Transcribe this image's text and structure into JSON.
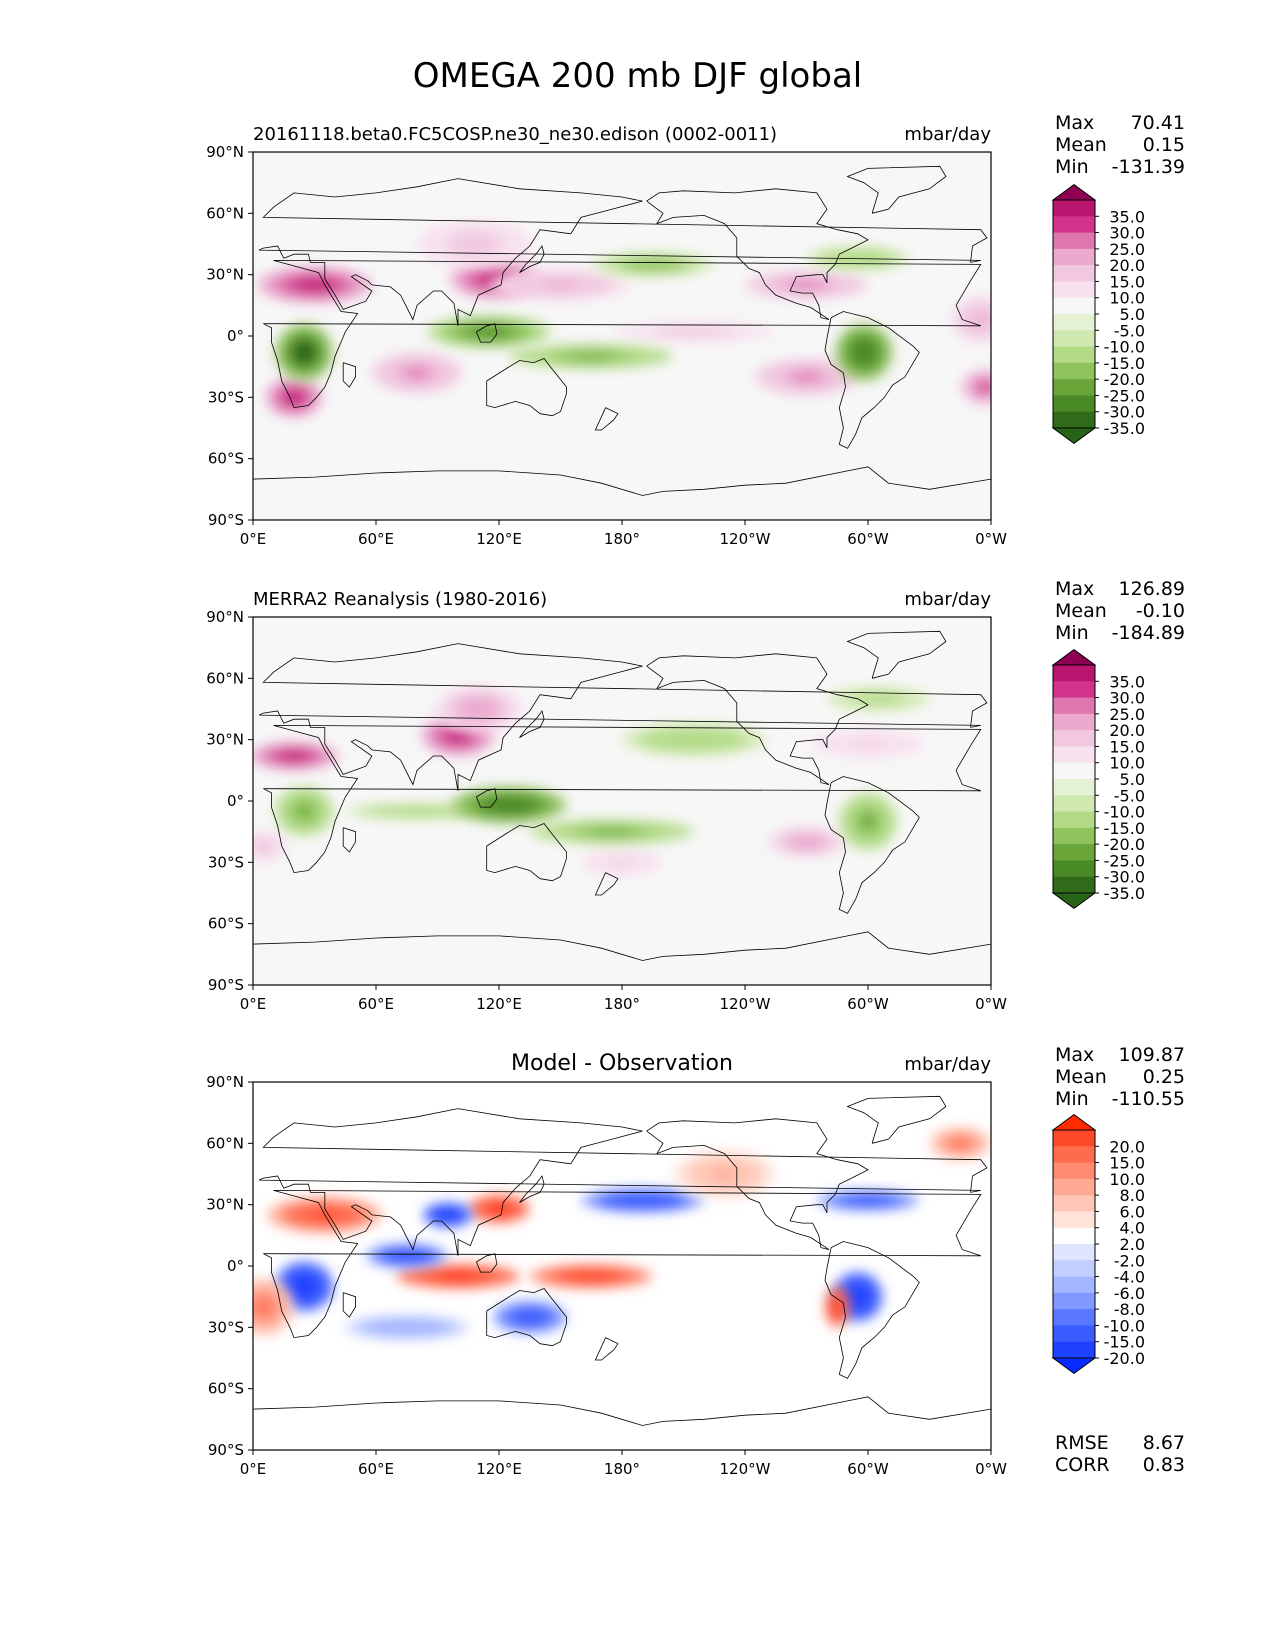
{
  "title": "OMEGA 200 mb DJF global",
  "axes": {
    "lat_labels": [
      "90°N",
      "60°N",
      "30°N",
      "0°",
      "30°S",
      "60°S",
      "90°S"
    ],
    "lon_labels": [
      "0°E",
      "60°E",
      "120°E",
      "180°",
      "120°W",
      "60°W",
      "0°W"
    ]
  },
  "panels": [
    {
      "title": "20161118.beta0.FC5COSP.ne30_ne30.edison (0002-0011)",
      "units": "mbar/day",
      "stats": [
        {
          "label": "Max",
          "value": "70.41"
        },
        {
          "label": "Mean",
          "value": "0.15"
        },
        {
          "label": "Min",
          "value": "-131.39"
        }
      ],
      "colorbar": {
        "labels": [
          "35.0",
          "30.0",
          "25.0",
          "20.0",
          "15.0",
          "10.0",
          "5.0",
          "-5.0",
          "-10.0",
          "-15.0",
          "-20.0",
          "-25.0",
          "-30.0",
          "-35.0"
        ],
        "colors": [
          "#8e0152",
          "#b8156f",
          "#d1338c",
          "#de77ae",
          "#eba9cf",
          "#f1c8e0",
          "#f7e1ee",
          "#f7f7f7",
          "#e6f2d4",
          "#d0e9b0",
          "#b3da87",
          "#8fc35c",
          "#6aa53a",
          "#4a8a26",
          "#2f6b18",
          "#276419"
        ],
        "top_color": "#8e0152",
        "bottom_color": "#276419"
      }
    },
    {
      "title": "MERRA2 Reanalysis (1980-2016)",
      "units": "mbar/day",
      "stats": [
        {
          "label": "Max",
          "value": "126.89"
        },
        {
          "label": "Mean",
          "value": "-0.10"
        },
        {
          "label": "Min",
          "value": "-184.89"
        }
      ],
      "colorbar": {
        "labels": [
          "35.0",
          "30.0",
          "25.0",
          "20.0",
          "15.0",
          "10.0",
          "5.0",
          "-5.0",
          "-10.0",
          "-15.0",
          "-20.0",
          "-25.0",
          "-30.0",
          "-35.0"
        ],
        "colors": [
          "#8e0152",
          "#b8156f",
          "#d1338c",
          "#de77ae",
          "#eba9cf",
          "#f1c8e0",
          "#f7e1ee",
          "#f7f7f7",
          "#e6f2d4",
          "#d0e9b0",
          "#b3da87",
          "#8fc35c",
          "#6aa53a",
          "#4a8a26",
          "#2f6b18",
          "#276419"
        ],
        "top_color": "#8e0152",
        "bottom_color": "#276419"
      }
    },
    {
      "title": "Model - Observation",
      "units": "mbar/day",
      "stats": [
        {
          "label": "Max",
          "value": "109.87"
        },
        {
          "label": "Mean",
          "value": "0.25"
        },
        {
          "label": "Min",
          "value": "-110.55"
        }
      ],
      "extra_stats": [
        {
          "label": "RMSE",
          "value": "8.67"
        },
        {
          "label": "CORR",
          "value": "0.83"
        }
      ],
      "colorbar": {
        "labels": [
          "20.0",
          "15.0",
          "10.0",
          "8.0",
          "6.0",
          "4.0",
          "2.0",
          "-2.0",
          "-4.0",
          "-6.0",
          "-8.0",
          "-10.0",
          "-15.0",
          "-20.0"
        ],
        "colors": [
          "#ff2a00",
          "#ff4a2a",
          "#ff6b4f",
          "#ff8a70",
          "#ffa892",
          "#ffc6b6",
          "#ffe3da",
          "#ffffff",
          "#dde5ff",
          "#c2ceff",
          "#a4b6ff",
          "#8098ff",
          "#5a78ff",
          "#3a5cff",
          "#1e40ff",
          "#0a2bff"
        ],
        "top_color": "#ff2a00",
        "bottom_color": "#0a2bff"
      }
    }
  ],
  "chart_data": [
    {
      "type": "heatmap",
      "title": "20161118.beta0.FC5COSP.ne30_ne30.edison (0002-0011)",
      "units": "mbar/day",
      "xlim": [
        0,
        360
      ],
      "ylim": [
        -90,
        90
      ],
      "x_ticks": [
        "0°E",
        "60°E",
        "120°E",
        "180°",
        "120°W",
        "60°W",
        "0°W"
      ],
      "y_ticks": [
        "90°N",
        "60°N",
        "30°N",
        "0°",
        "30°S",
        "60°S",
        "90°S"
      ],
      "stats": {
        "max": 70.41,
        "mean": 0.15,
        "min": -131.39
      },
      "color_levels": [
        -35,
        -30,
        -25,
        -20,
        -15,
        -10,
        -5,
        5,
        10,
        15,
        20,
        25,
        30,
        35
      ],
      "features": [
        {
          "lon": 30,
          "lat": 25,
          "rx": 28,
          "ry": 9,
          "value": 32
        },
        {
          "lon": 118,
          "lat": 28,
          "rx": 22,
          "ry": 10,
          "value": 34
        },
        {
          "lon": 108,
          "lat": 45,
          "rx": 28,
          "ry": 12,
          "value": 12
        },
        {
          "lon": 150,
          "lat": 25,
          "rx": 35,
          "ry": 8,
          "value": 16
        },
        {
          "lon": 270,
          "lat": 25,
          "rx": 30,
          "ry": 7,
          "value": 22
        },
        {
          "lon": 20,
          "lat": -30,
          "rx": 14,
          "ry": 10,
          "value": 30
        },
        {
          "lon": 80,
          "lat": -18,
          "rx": 22,
          "ry": 10,
          "value": 20
        },
        {
          "lon": 270,
          "lat": -20,
          "rx": 25,
          "ry": 9,
          "value": 22
        },
        {
          "lon": 357,
          "lat": -25,
          "rx": 12,
          "ry": 9,
          "value": 28
        },
        {
          "lon": 355,
          "lat": 8,
          "rx": 15,
          "ry": 12,
          "value": 15
        },
        {
          "lon": 215,
          "lat": 2,
          "rx": 40,
          "ry": 5,
          "value": 12
        },
        {
          "lon": 25,
          "lat": -8,
          "rx": 14,
          "ry": 14,
          "value": -36
        },
        {
          "lon": 115,
          "lat": 2,
          "rx": 30,
          "ry": 8,
          "value": -28
        },
        {
          "lon": 165,
          "lat": -10,
          "rx": 40,
          "ry": 6,
          "value": -22
        },
        {
          "lon": 298,
          "lat": -8,
          "rx": 14,
          "ry": 14,
          "value": -30
        },
        {
          "lon": 195,
          "lat": 35,
          "rx": 30,
          "ry": 6,
          "value": -18
        },
        {
          "lon": 295,
          "lat": 38,
          "rx": 25,
          "ry": 6,
          "value": -15
        }
      ]
    },
    {
      "type": "heatmap",
      "title": "MERRA2 Reanalysis (1980-2016)",
      "units": "mbar/day",
      "xlim": [
        0,
        360
      ],
      "ylim": [
        -90,
        90
      ],
      "x_ticks": [
        "0°E",
        "60°E",
        "120°E",
        "180°",
        "120°W",
        "60°W",
        "0°W"
      ],
      "y_ticks": [
        "90°N",
        "60°N",
        "30°N",
        "0°",
        "30°S",
        "60°S",
        "90°S"
      ],
      "stats": {
        "max": 126.89,
        "mean": -0.1,
        "min": -184.89
      },
      "color_levels": [
        -35,
        -30,
        -25,
        -20,
        -15,
        -10,
        -5,
        5,
        10,
        15,
        20,
        25,
        30,
        35
      ],
      "features": [
        {
          "lon": 20,
          "lat": 22,
          "rx": 22,
          "ry": 7,
          "value": 30
        },
        {
          "lon": 100,
          "lat": 32,
          "rx": 18,
          "ry": 10,
          "value": 34
        },
        {
          "lon": 110,
          "lat": 45,
          "rx": 22,
          "ry": 12,
          "value": 18
        },
        {
          "lon": 300,
          "lat": 28,
          "rx": 28,
          "ry": 7,
          "value": 10
        },
        {
          "lon": 270,
          "lat": -20,
          "rx": 20,
          "ry": 8,
          "value": 18
        },
        {
          "lon": 5,
          "lat": -22,
          "rx": 12,
          "ry": 8,
          "value": 14
        },
        {
          "lon": 180,
          "lat": -30,
          "rx": 20,
          "ry": 7,
          "value": 10
        },
        {
          "lon": 25,
          "lat": -5,
          "rx": 14,
          "ry": 12,
          "value": -22
        },
        {
          "lon": 80,
          "lat": -5,
          "rx": 35,
          "ry": 4,
          "value": -15
        },
        {
          "lon": 125,
          "lat": -2,
          "rx": 28,
          "ry": 9,
          "value": -30
        },
        {
          "lon": 175,
          "lat": -15,
          "rx": 40,
          "ry": 6,
          "value": -22
        },
        {
          "lon": 300,
          "lat": -10,
          "rx": 14,
          "ry": 14,
          "value": -22
        },
        {
          "lon": 215,
          "lat": 30,
          "rx": 35,
          "ry": 8,
          "value": -15
        },
        {
          "lon": 305,
          "lat": 50,
          "rx": 25,
          "ry": 6,
          "value": -12
        }
      ]
    },
    {
      "type": "heatmap",
      "title": "Model - Observation",
      "units": "mbar/day",
      "xlim": [
        0,
        360
      ],
      "ylim": [
        -90,
        90
      ],
      "x_ticks": [
        "0°E",
        "60°E",
        "120°E",
        "180°",
        "120°W",
        "60°W",
        "0°W"
      ],
      "y_ticks": [
        "90°N",
        "60°N",
        "30°N",
        "0°",
        "30°S",
        "60°S",
        "90°S"
      ],
      "stats": {
        "max": 109.87,
        "mean": 0.25,
        "min": -110.55,
        "rmse": 8.67,
        "corr": 0.83
      },
      "color_levels": [
        -20,
        -15,
        -10,
        -8,
        -6,
        -4,
        -2,
        2,
        4,
        6,
        8,
        10,
        15,
        20
      ],
      "features": [
        {
          "lon": 35,
          "lat": 25,
          "rx": 28,
          "ry": 9,
          "value": 15
        },
        {
          "lon": 120,
          "lat": 28,
          "rx": 15,
          "ry": 7,
          "value": 20
        },
        {
          "lon": 95,
          "lat": 25,
          "rx": 12,
          "ry": 6,
          "value": -20
        },
        {
          "lon": 190,
          "lat": 32,
          "rx": 30,
          "ry": 6,
          "value": -15
        },
        {
          "lon": 300,
          "lat": 32,
          "rx": 25,
          "ry": 5,
          "value": -12
        },
        {
          "lon": 100,
          "lat": -5,
          "rx": 30,
          "ry": 6,
          "value": 20
        },
        {
          "lon": 165,
          "lat": -5,
          "rx": 30,
          "ry": 6,
          "value": 18
        },
        {
          "lon": 25,
          "lat": -10,
          "rx": 14,
          "ry": 12,
          "value": -20
        },
        {
          "lon": 75,
          "lat": 5,
          "rx": 20,
          "ry": 6,
          "value": -15
        },
        {
          "lon": 135,
          "lat": -25,
          "rx": 18,
          "ry": 8,
          "value": -12
        },
        {
          "lon": 295,
          "lat": -15,
          "rx": 12,
          "ry": 12,
          "value": -20
        },
        {
          "lon": 285,
          "lat": -20,
          "rx": 6,
          "ry": 10,
          "value": 20
        },
        {
          "lon": 5,
          "lat": -20,
          "rx": 15,
          "ry": 14,
          "value": 10
        },
        {
          "lon": 75,
          "lat": -30,
          "rx": 30,
          "ry": 6,
          "value": -6
        },
        {
          "lon": 230,
          "lat": 45,
          "rx": 25,
          "ry": 12,
          "value": 6
        },
        {
          "lon": 345,
          "lat": 60,
          "rx": 15,
          "ry": 8,
          "value": 10
        }
      ]
    }
  ]
}
